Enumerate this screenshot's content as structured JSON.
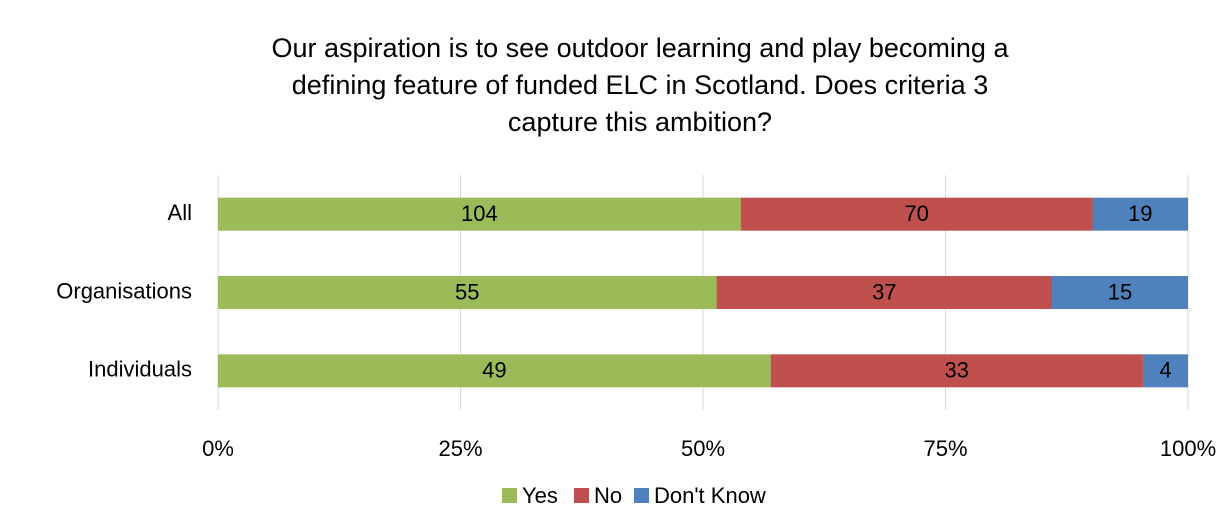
{
  "chart_data": {
    "type": "bar",
    "orientation": "horizontal",
    "stacking": "percent",
    "title": [
      "Our aspiration is to see outdoor learning and play becoming a",
      "defining feature of funded ELC in Scotland. Does criteria 3",
      "capture this ambition?"
    ],
    "categories": [
      "All",
      "Organisations",
      "Individuals"
    ],
    "series": [
      {
        "name": "Yes",
        "color": "#9bbb59",
        "values": [
          104,
          55,
          49
        ]
      },
      {
        "name": "No",
        "color": "#c0504d",
        "values": [
          70,
          37,
          33
        ]
      },
      {
        "name": "Don't Know",
        "color": "#4f81bd",
        "values": [
          19,
          15,
          4
        ]
      }
    ],
    "xlim": [
      0,
      100
    ],
    "xticks": [
      {
        "value": 0,
        "label": "0%"
      },
      {
        "value": 25,
        "label": "25%"
      },
      {
        "value": 50,
        "label": "50%"
      },
      {
        "value": 75,
        "label": "75%"
      },
      {
        "value": 100,
        "label": "100%"
      }
    ],
    "grid": true,
    "legend": "bottom"
  }
}
